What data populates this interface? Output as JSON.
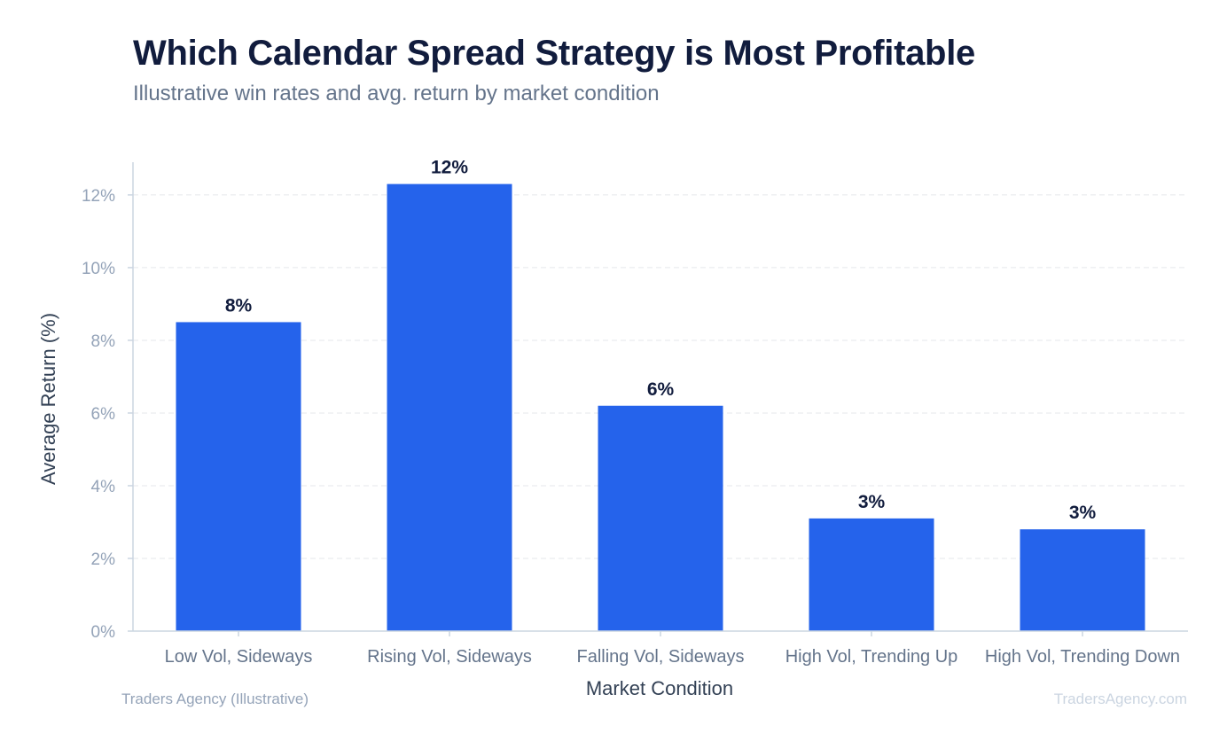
{
  "header": {
    "title": "Which Calendar Spread Strategy is Most Profitable",
    "subtitle": "Illustrative win rates and avg. return by market condition"
  },
  "footer": {
    "source": "Traders Agency (Illustrative)",
    "watermark": "TradersAgency.com"
  },
  "colors": {
    "bar": "#2563eb",
    "grid": "#e5e7eb",
    "axis": "#cbd5e1"
  },
  "chart_data": {
    "type": "bar",
    "title": "Which Calendar Spread Strategy is Most Profitable",
    "subtitle": "Illustrative win rates and avg. return by market condition",
    "xlabel": "Market Condition",
    "ylabel": "Average Return (%)",
    "categories": [
      "Low Vol, Sideways",
      "Rising Vol, Sideways",
      "Falling Vol, Sideways",
      "High Vol, Trending Up",
      "High Vol, Trending Down"
    ],
    "values": [
      8.5,
      12.3,
      6.2,
      3.1,
      2.8
    ],
    "value_labels": [
      "8%",
      "12%",
      "6%",
      "3%",
      "3%"
    ],
    "yticks": [
      0,
      2,
      4,
      6,
      8,
      10,
      12
    ],
    "ytick_labels": [
      "0%",
      "2%",
      "4%",
      "6%",
      "8%",
      "10%",
      "12%"
    ],
    "ylim": [
      0,
      12.9
    ],
    "grid": true,
    "legend": "none"
  }
}
